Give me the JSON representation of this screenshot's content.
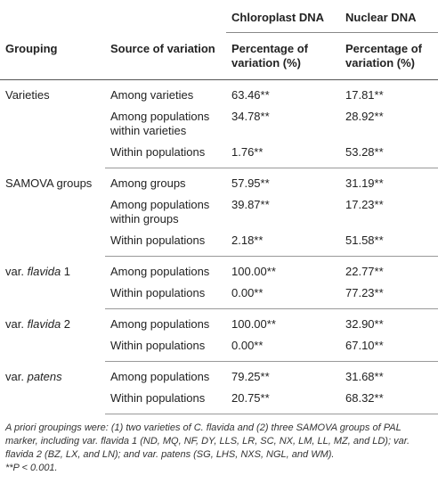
{
  "table": {
    "header": {
      "chloroplast": "Chloroplast DNA",
      "nuclear": "Nuclear DNA",
      "grouping": "Grouping",
      "source": "Source of variation",
      "chloroplast_pct": "Percentage of variation (%)",
      "nuclear_pct": "Percentage of variation (%)"
    },
    "groups": [
      {
        "grouping": {
          "text": "Varieties"
        },
        "rows": [
          [
            "Among varieties",
            "63.46**",
            "17.81**"
          ],
          [
            "Among populations within varieties",
            "34.78**",
            "28.92**"
          ],
          [
            "Within populations",
            "1.76**",
            "53.28**"
          ]
        ]
      },
      {
        "grouping": {
          "text": "SAMOVA groups"
        },
        "rows": [
          [
            "Among groups",
            "57.95**",
            "31.19**"
          ],
          [
            "Among populations within groups",
            "39.87**",
            "17.23**"
          ],
          [
            "Within populations",
            "2.18**",
            "51.58**"
          ]
        ]
      },
      {
        "grouping": {
          "text": "var.",
          "italic": "flavida",
          "suffix": "1"
        },
        "rows": [
          [
            "Among populations",
            "100.00**",
            "22.77**"
          ],
          [
            "Within populations",
            "0.00**",
            "77.23**"
          ]
        ]
      },
      {
        "grouping": {
          "text": "var.",
          "italic": "flavida",
          "suffix": "2"
        },
        "rows": [
          [
            "Among populations",
            "100.00**",
            "32.90**"
          ],
          [
            "Within populations",
            "0.00**",
            "67.10**"
          ]
        ]
      },
      {
        "grouping": {
          "text": "var.",
          "italic": "patens"
        },
        "rows": [
          [
            "Among populations",
            "79.25**",
            "31.68**"
          ],
          [
            "Within populations",
            "20.75**",
            "68.32**"
          ]
        ]
      }
    ]
  },
  "footnote": {
    "note": "A priori groupings were: (1) two varieties of C. flavida and (2) three SAMOVA groups of PAL marker, including var. flavida 1 (ND, MQ, NF, DY, LLS, LR, SC, NX, LM, LL, MZ, and LD); var. flavida 2 (BZ, LX, and LN); and var. patens (SG, LHS, NXS, NGL, and WM).",
    "significance": "**P < 0.001."
  }
}
